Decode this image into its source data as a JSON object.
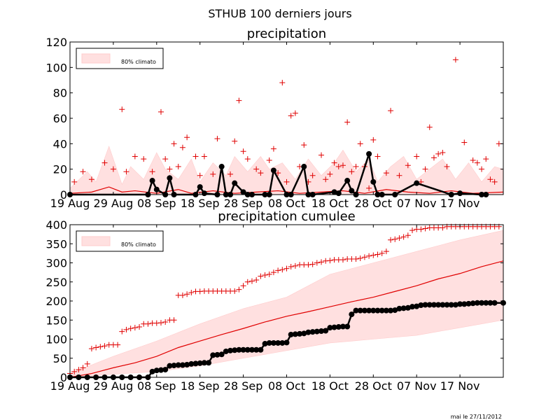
{
  "figure": {
    "suptitle": "STHUB 100 derniers jours",
    "footer": "mai le 27/11/2012"
  },
  "chart_data": [
    {
      "type": "line",
      "title": "precipitation",
      "legend": {
        "label": "80% climato",
        "placement": "top-left"
      },
      "ylim": [
        0,
        120
      ],
      "yticks": [
        0,
        20,
        40,
        60,
        80,
        100,
        120
      ],
      "xlim": [
        0,
        100
      ],
      "xticks": [
        {
          "pos": 0,
          "label": "19 Aug"
        },
        {
          "pos": 10,
          "label": "29 Aug"
        },
        {
          "pos": 20,
          "label": "08 Sep"
        },
        {
          "pos": 30,
          "label": "18 Sep"
        },
        {
          "pos": 40,
          "label": "28 Sep"
        },
        {
          "pos": 50,
          "label": "08 Oct"
        },
        {
          "pos": 60,
          "label": "18 Oct"
        },
        {
          "pos": 70,
          "label": "28 Oct"
        },
        {
          "pos": 80,
          "label": "07 Nov"
        },
        {
          "pos": 90,
          "label": "17 Nov"
        }
      ],
      "colors": {
        "band": "#ffe0e0",
        "median": "#e00000",
        "obs": "#000000",
        "extreme": "#e00000",
        "members": "#000000"
      },
      "series": [
        {
          "name": "80% climato",
          "kind": "band",
          "x": [
            0,
            4,
            6,
            9,
            12,
            14,
            17,
            20,
            22,
            25,
            28,
            30,
            33,
            36,
            38,
            41,
            44,
            46,
            49,
            52,
            55,
            58,
            61,
            63,
            66,
            69,
            71,
            74,
            77,
            80,
            83,
            86,
            89,
            92,
            95,
            98,
            100
          ],
          "upper": [
            5,
            18,
            10,
            38,
            8,
            22,
            12,
            33,
            20,
            12,
            28,
            10,
            25,
            15,
            30,
            18,
            30,
            20,
            25,
            12,
            28,
            15,
            25,
            35,
            18,
            28,
            10,
            22,
            30,
            12,
            20,
            28,
            12,
            25,
            10,
            22,
            20
          ]
        },
        {
          "name": "median",
          "kind": "line",
          "x": [
            0,
            5,
            9,
            12,
            15,
            20,
            25,
            28,
            33,
            38,
            43,
            48,
            53,
            58,
            63,
            68,
            73,
            78,
            83,
            88,
            93,
            100
          ],
          "y": [
            1,
            2,
            6,
            2,
            3,
            1,
            4,
            1,
            3,
            1,
            2,
            3,
            1,
            2,
            3,
            1,
            4,
            2,
            1,
            3,
            1,
            2
          ]
        },
        {
          "name": "observed",
          "kind": "obs",
          "x": [
            0,
            18,
            19,
            20,
            22,
            23,
            24,
            29,
            30,
            31,
            34,
            35,
            36,
            37,
            38,
            40,
            41,
            42,
            45,
            46,
            47,
            50,
            51,
            54,
            55,
            56,
            61,
            62,
            64,
            65,
            66,
            69,
            70,
            71,
            72,
            75,
            80,
            88,
            90,
            95,
            96
          ],
          "y": [
            0,
            0,
            11,
            4,
            0,
            13,
            0,
            0,
            6,
            1,
            0,
            22,
            0,
            0,
            9,
            2,
            0,
            0,
            0,
            0,
            19,
            0,
            0,
            22,
            0,
            0,
            2,
            1,
            11,
            3,
            0,
            32,
            10,
            0,
            0,
            0,
            9,
            0,
            1,
            0,
            0
          ]
        },
        {
          "name": "extreme",
          "kind": "plus",
          "x": [
            1,
            3,
            5,
            8,
            10,
            12,
            13,
            15,
            17,
            19,
            21,
            22,
            23,
            24,
            25,
            26,
            27,
            29,
            30,
            31,
            33,
            34,
            35,
            37,
            38,
            39,
            40,
            41,
            43,
            44,
            46,
            47,
            48,
            49,
            50,
            51,
            52,
            53,
            54,
            55,
            56,
            58,
            59,
            60,
            61,
            62,
            63,
            64,
            65,
            66,
            67,
            68,
            69,
            70,
            71,
            73,
            74,
            76,
            78,
            80,
            81,
            82,
            83,
            84,
            85,
            86,
            87,
            89,
            91,
            93,
            94,
            95,
            96,
            97,
            98,
            99
          ],
          "y": [
            10,
            18,
            12,
            25,
            20,
            67,
            18,
            30,
            28,
            18,
            65,
            28,
            20,
            40,
            22,
            37,
            45,
            30,
            15,
            30,
            16,
            44,
            22,
            16,
            42,
            74,
            34,
            28,
            20,
            17,
            27,
            36,
            17,
            88,
            10,
            62,
            64,
            22,
            39,
            10,
            15,
            31,
            12,
            16,
            25,
            22,
            23,
            57,
            18,
            22,
            40,
            22,
            5,
            43,
            30,
            17,
            66,
            15,
            23,
            30,
            10,
            20,
            53,
            29,
            32,
            33,
            22,
            106,
            41,
            27,
            25,
            20,
            28,
            12,
            10,
            40
          ]
        }
      ]
    },
    {
      "type": "line",
      "title": "precipitation cumulee",
      "legend": {
        "label": "80% climato",
        "placement": "top-left"
      },
      "ylim": [
        0,
        400
      ],
      "yticks": [
        0,
        50,
        100,
        150,
        200,
        250,
        300,
        350,
        400
      ],
      "xlim": [
        0,
        100
      ],
      "xticks": [
        {
          "pos": 0,
          "label": "19 Aug"
        },
        {
          "pos": 10,
          "label": "29 Aug"
        },
        {
          "pos": 20,
          "label": "08 Sep"
        },
        {
          "pos": 30,
          "label": "18 Sep"
        },
        {
          "pos": 40,
          "label": "28 Sep"
        },
        {
          "pos": 50,
          "label": "08 Oct"
        },
        {
          "pos": 60,
          "label": "18 Oct"
        },
        {
          "pos": 70,
          "label": "28 Oct"
        },
        {
          "pos": 80,
          "label": "07 Nov"
        },
        {
          "pos": 90,
          "label": "17 Nov"
        }
      ],
      "colors": {
        "band": "#ffe0e0",
        "median": "#e00000",
        "obs": "#000000",
        "extreme": "#e00000",
        "members": "#000000"
      },
      "series": [
        {
          "name": "80% climato",
          "kind": "band",
          "x": [
            0,
            10,
            20,
            30,
            40,
            50,
            60,
            70,
            80,
            90,
            100
          ],
          "lower": [
            0,
            8,
            15,
            30,
            50,
            70,
            90,
            100,
            110,
            130,
            150
          ],
          "upper": [
            10,
            55,
            95,
            140,
            180,
            210,
            270,
            300,
            330,
            360,
            385
          ]
        },
        {
          "name": "median",
          "kind": "line",
          "x": [
            0,
            5,
            10,
            15,
            20,
            25,
            30,
            35,
            40,
            45,
            50,
            55,
            60,
            65,
            70,
            75,
            80,
            85,
            90,
            95,
            100
          ],
          "y": [
            0,
            10,
            25,
            38,
            55,
            78,
            95,
            112,
            128,
            145,
            160,
            172,
            185,
            198,
            210,
            225,
            240,
            258,
            272,
            290,
            305
          ]
        },
        {
          "name": "observed",
          "kind": "obs",
          "x": [
            0,
            2,
            4,
            6,
            8,
            10,
            12,
            14,
            16,
            18,
            19,
            20,
            21,
            22,
            23,
            24,
            25,
            26,
            27,
            28,
            29,
            30,
            31,
            32,
            33,
            34,
            35,
            36,
            37,
            38,
            39,
            40,
            41,
            42,
            43,
            44,
            45,
            46,
            47,
            48,
            49,
            50,
            51,
            52,
            53,
            54,
            55,
            56,
            57,
            58,
            59,
            60,
            61,
            62,
            63,
            64,
            65,
            66,
            67,
            68,
            69,
            70,
            71,
            72,
            73,
            74,
            75,
            76,
            77,
            78,
            79,
            80,
            81,
            82,
            83,
            84,
            85,
            86,
            87,
            88,
            89,
            90,
            91,
            92,
            93,
            94,
            95,
            96,
            97,
            98,
            100
          ],
          "y": [
            0,
            0,
            0,
            0,
            0,
            0,
            0,
            0,
            0,
            0,
            15,
            18,
            19,
            20,
            30,
            31,
            32,
            32,
            33,
            35,
            36,
            37,
            38,
            38,
            58,
            59,
            60,
            68,
            70,
            71,
            72,
            72,
            72,
            72,
            72,
            72,
            88,
            90,
            90,
            90,
            90,
            91,
            112,
            113,
            114,
            115,
            118,
            119,
            120,
            121,
            122,
            130,
            131,
            132,
            133,
            133,
            165,
            175,
            175,
            175,
            175,
            175,
            175,
            175,
            175,
            175,
            176,
            180,
            181,
            182,
            185,
            186,
            189,
            190,
            190,
            190,
            190,
            190,
            190,
            190,
            190,
            192,
            192,
            193,
            194,
            195,
            195,
            195,
            195,
            195,
            195
          ]
        },
        {
          "name": "extreme",
          "kind": "plus",
          "x": [
            0,
            1,
            2,
            3,
            4,
            5,
            6,
            7,
            8,
            9,
            10,
            11,
            12,
            13,
            14,
            15,
            16,
            17,
            18,
            19,
            20,
            21,
            22,
            23,
            24,
            25,
            26,
            27,
            28,
            29,
            30,
            31,
            32,
            33,
            34,
            35,
            36,
            37,
            38,
            39,
            40,
            41,
            42,
            43,
            44,
            45,
            46,
            47,
            48,
            49,
            50,
            51,
            52,
            53,
            54,
            55,
            56,
            57,
            58,
            59,
            60,
            61,
            62,
            63,
            64,
            65,
            66,
            67,
            68,
            69,
            70,
            71,
            72,
            73,
            74,
            75,
            76,
            77,
            78,
            79,
            80,
            81,
            82,
            83,
            84,
            85,
            86,
            87,
            88,
            89,
            90,
            91,
            92,
            93,
            94,
            95,
            96,
            97,
            98,
            99
          ],
          "y": [
            10,
            15,
            20,
            25,
            35,
            75,
            78,
            80,
            82,
            85,
            85,
            85,
            120,
            125,
            128,
            130,
            132,
            140,
            140,
            142,
            142,
            143,
            145,
            150,
            150,
            215,
            215,
            218,
            222,
            225,
            225,
            226,
            226,
            226,
            226,
            226,
            226,
            226,
            226,
            230,
            240,
            250,
            252,
            255,
            265,
            268,
            270,
            275,
            280,
            282,
            285,
            290,
            292,
            295,
            295,
            295,
            296,
            300,
            302,
            305,
            306,
            308,
            308,
            308,
            310,
            310,
            310,
            312,
            315,
            318,
            320,
            322,
            325,
            330,
            360,
            362,
            365,
            368,
            372,
            385,
            388,
            388,
            390,
            392,
            392,
            392,
            392,
            395,
            395,
            395,
            395,
            395,
            395,
            395,
            395,
            395,
            395,
            395,
            395,
            395
          ]
        }
      ]
    }
  ]
}
